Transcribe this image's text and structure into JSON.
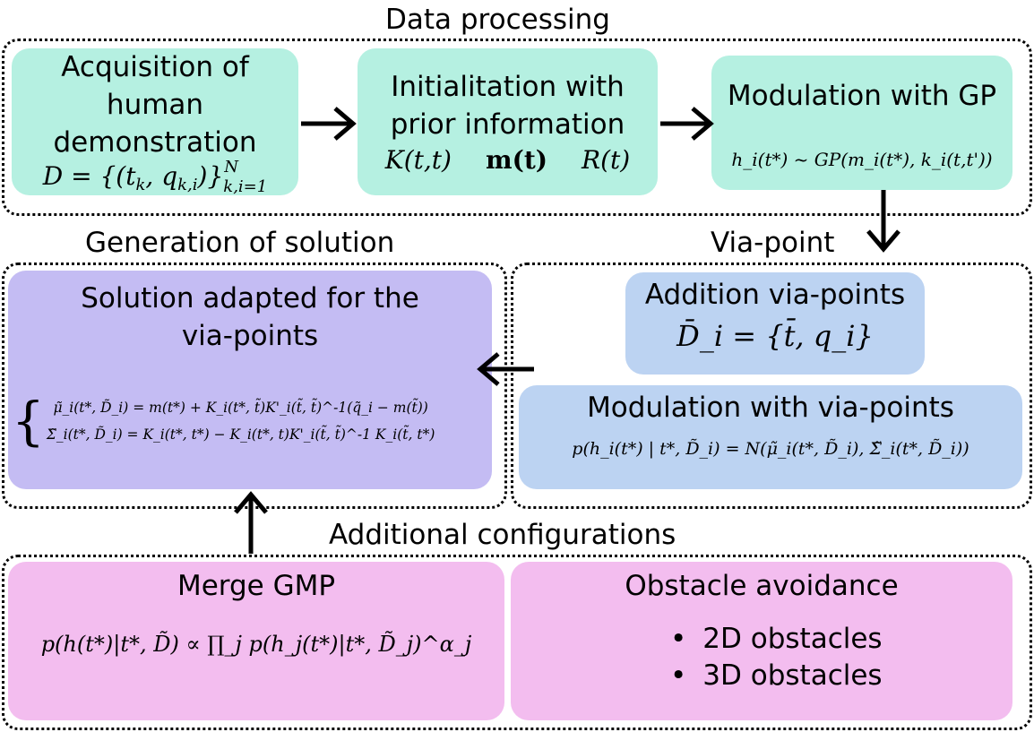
{
  "sections": {
    "data_processing": "Data processing",
    "generation": "Generation of solution",
    "via_point": "Via-point",
    "additional": "Additional configurations"
  },
  "boxes": {
    "acquisition": {
      "title": "Acquisition of human demonstration",
      "formula": "D = {(t_k, q_k,i)}_{k,i=1}^N"
    },
    "initialization": {
      "title": "Initialitation with prior information",
      "terms": [
        "K(t,t)",
        "m(t)",
        "R(t)"
      ]
    },
    "modulation_gp": {
      "title": "Modulation with GP",
      "formula": "h_i(t*) ~ GP(m_i(t*), k_i(t,t'))"
    },
    "addition_via": {
      "title": "Addition via-points",
      "formula": "D̄_i = {t̄, q_i}"
    },
    "modulation_via": {
      "title": "Modulation with via-points",
      "formula": "p(h_i(t*) | t*, D̃_i) = N(μ̃_i(t*, D̃_i), Σ̃_i(t*, D̃_i))"
    },
    "solution": {
      "title": "Solution adapted for the via-points",
      "formula_mu": "μ̃_i(t*, D̃_i) = m(t*) + K_i(t*, t̃)K'_i(t̃, t̃)^-1(q̃_i − m(t̃))",
      "formula_sigma": "Σ̃_i(t*, D̃_i) = K_i(t*, t*) − K_i(t*, t)K'_i(t̃, t̃)^-1 K_i(t̃, t*)"
    },
    "merge": {
      "title": "Merge GMP",
      "formula": "p(h(t*)|t*, D̃) ∝ ∏_j p(h_j(t*)|t*, D̃_j)^α_j"
    },
    "obstacle": {
      "title": "Obstacle avoidance",
      "items": [
        "2D obstacles",
        "3D obstacles"
      ]
    }
  },
  "colors": {
    "teal": "#b5f0e1",
    "blue": "#bcd3f2",
    "purple": "#c4bcf3",
    "pink": "#f3bdef"
  }
}
